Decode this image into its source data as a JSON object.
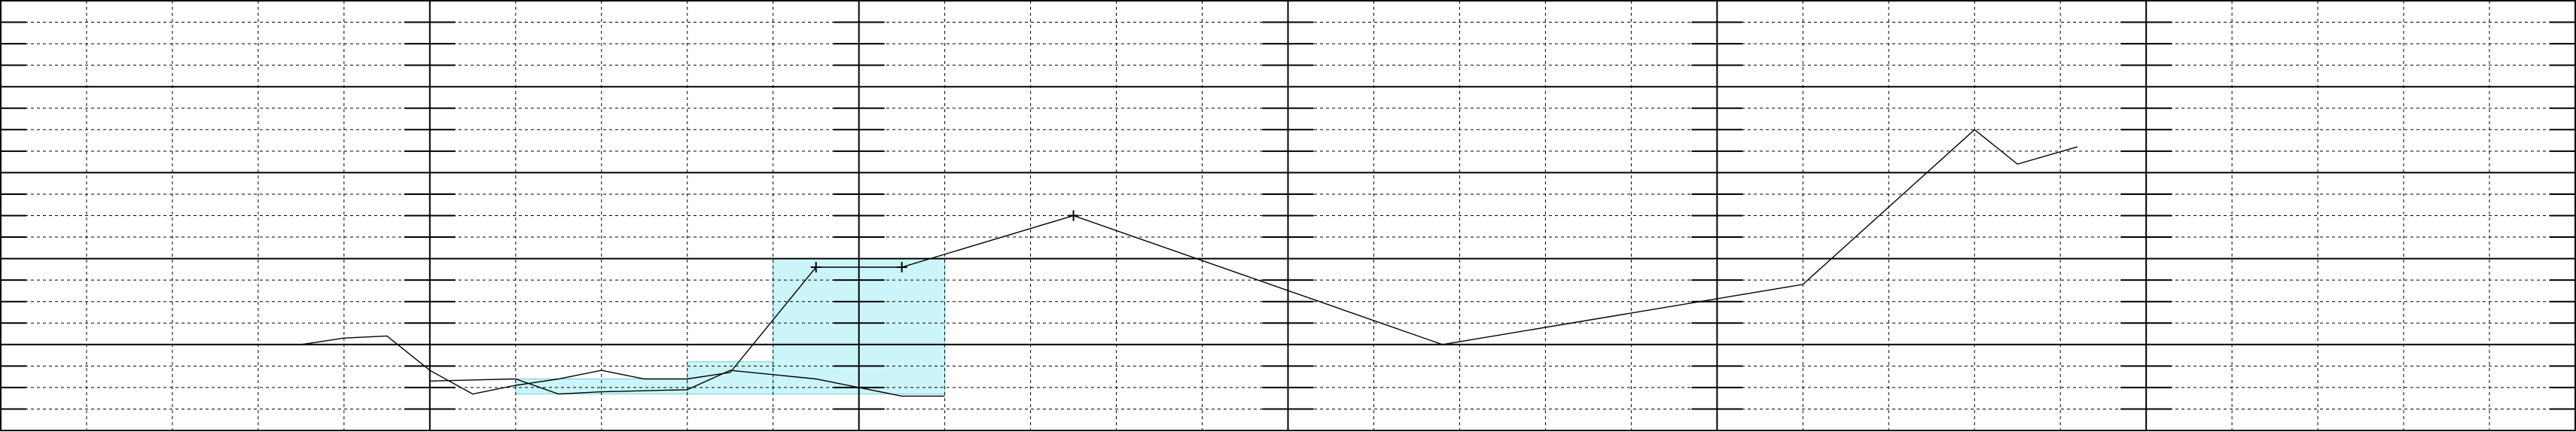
{
  "chart_data": {
    "type": "line",
    "title": "",
    "xlabel": "",
    "ylabel": "",
    "xlim": [
      0,
      30
    ],
    "ylim": [
      0,
      10
    ],
    "grid": true,
    "grid_major_x_every": 5,
    "grid_minor_x_every": 1,
    "grid_major_y_every": 2,
    "grid_minor_y_every": 0.5,
    "colors": {
      "background": "#ffffff",
      "grid": "#000000",
      "line": "#000000",
      "highlight_fill": "#ccf5fa",
      "highlight_stroke": "#6fd0dc"
    },
    "series": [
      {
        "values": [
          {
            "x": 3.5,
            "y": 2.0
          },
          {
            "x": 4.0,
            "y": 2.15
          },
          {
            "x": 4.5,
            "y": 2.2
          },
          {
            "x": 5.0,
            "y": 1.4
          },
          {
            "x": 5.5,
            "y": 0.85
          },
          {
            "x": 6.0,
            "y": 1.05
          },
          {
            "x": 6.5,
            "y": 1.2
          },
          {
            "x": 7.0,
            "y": 1.4
          },
          {
            "x": 7.5,
            "y": 1.2
          },
          {
            "x": 8.0,
            "y": 1.2
          },
          {
            "x": 8.5,
            "y": 1.35
          },
          {
            "x": 9.5,
            "y": 3.8,
            "marker": true
          },
          {
            "x": 10.5,
            "y": 3.8,
            "marker": true
          },
          {
            "x": 12.5,
            "y": 5.0,
            "marker": true
          },
          {
            "x": 16.8,
            "y": 2.0
          },
          {
            "x": 21.0,
            "y": 3.4
          },
          {
            "x": 23.0,
            "y": 7.0
          },
          {
            "x": 23.5,
            "y": 6.2
          },
          {
            "x": 24.2,
            "y": 6.6
          }
        ]
      },
      {
        "values": [
          {
            "x": 5.0,
            "y": 1.15
          },
          {
            "x": 6.0,
            "y": 1.2
          },
          {
            "x": 6.5,
            "y": 0.85
          },
          {
            "x": 7.0,
            "y": 0.9
          },
          {
            "x": 8.0,
            "y": 0.95
          },
          {
            "x": 8.5,
            "y": 1.4
          },
          {
            "x": 9.5,
            "y": 1.2
          },
          {
            "x": 10.5,
            "y": 0.8
          },
          {
            "x": 11.0,
            "y": 0.8
          }
        ]
      }
    ],
    "highlights": [
      {
        "x0": 9.0,
        "x1": 11.0,
        "y0": 0.85,
        "y1": 4.0
      },
      {
        "x0": 8.0,
        "x1": 9.0,
        "y0": 0.85,
        "y1": 1.6
      },
      {
        "x0": 6.0,
        "x1": 8.0,
        "y0": 0.85,
        "y1": 1.2
      }
    ]
  }
}
